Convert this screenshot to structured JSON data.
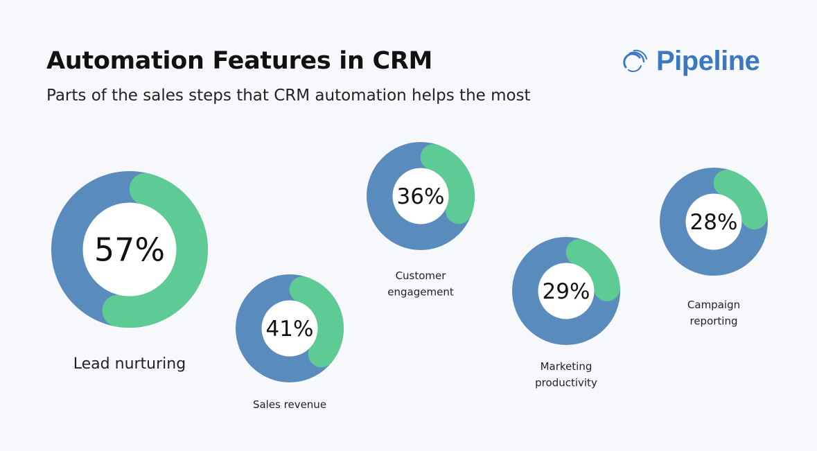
{
  "header": {
    "title": "Automation Features in CRM",
    "subtitle": "Parts of the sales steps that CRM automation helps the most"
  },
  "logo": {
    "text": "Pipeline",
    "icon": "pipeline-swirl-icon",
    "color": "#3c78c0"
  },
  "colors": {
    "highlight": "#5ecb94",
    "remainder": "#5a8bbd",
    "center": "#ffffff",
    "background": "#f6f8fc"
  },
  "chart_data": {
    "type": "pie",
    "title": "Automation Features in CRM",
    "subtitle": "Parts of the sales steps that CRM automation helps the most",
    "categories": [
      "Lead nurturing",
      "Sales revenue",
      "Customer engagement",
      "Marketing productivity",
      "Campaign reporting"
    ],
    "values": [
      57,
      41,
      36,
      29,
      28
    ],
    "items": [
      {
        "label": "Lead nurturing",
        "label_lines": [
          "Lead nurturing"
        ],
        "value": 57,
        "display": "57%"
      },
      {
        "label": "Sales revenue",
        "label_lines": [
          "Sales revenue"
        ],
        "value": 41,
        "display": "41%"
      },
      {
        "label": "Customer engagement",
        "label_lines": [
          "Customer",
          "engagement"
        ],
        "value": 36,
        "display": "36%"
      },
      {
        "label": "Marketing productivity",
        "label_lines": [
          "Marketing",
          "productivity"
        ],
        "value": 29,
        "display": "29%"
      },
      {
        "label": "Campaign reporting",
        "label_lines": [
          "Campaign",
          "reporting"
        ],
        "value": 28,
        "display": "28%"
      }
    ]
  }
}
